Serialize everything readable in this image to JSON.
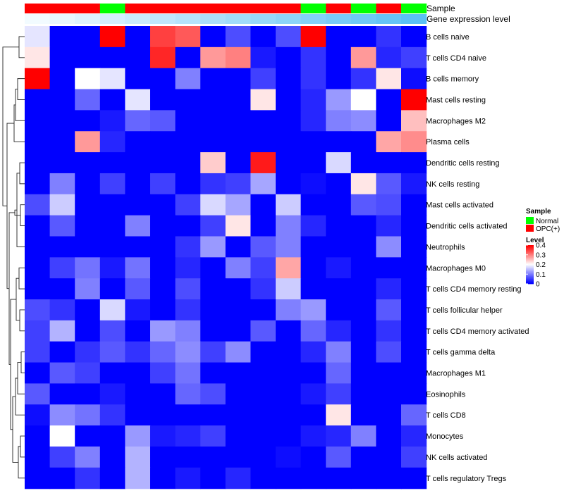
{
  "chart_data": {
    "type": "heatmap",
    "title": "",
    "annotations": {
      "sample_label": "Sample",
      "gene_label": "Gene expression level",
      "sample_values": [
        "OPC(+)",
        "OPC(+)",
        "OPC(+)",
        "Normal",
        "OPC(+)",
        "OPC(+)",
        "OPC(+)",
        "OPC(+)",
        "OPC(+)",
        "OPC(+)",
        "OPC(+)",
        "Normal",
        "OPC(+)",
        "Normal",
        "OPC(+)",
        "Normal"
      ],
      "gene_level_order": "increasing from left to right (white to light blue)"
    },
    "rows": [
      "B cells naive",
      "T cells CD4 naive",
      "B cells memory",
      "Mast cells resting",
      "Macrophages M2",
      "Plasma cells",
      "Dendritic cells resting",
      "NK cells resting",
      "Mast cells activated",
      "Dendritic cells activated",
      "Neutrophils",
      "Macrophages M0",
      "T cells CD4 memory resting",
      "T cells follicular helper",
      "T cells CD4 memory activated",
      "T cells gamma delta",
      "Macrophages M1",
      "Eosinophils",
      "T cells CD8",
      "Monocytes",
      "NK cells activated",
      "T cells regulatory  Tregs"
    ],
    "values": [
      [
        0.18,
        0,
        0,
        0.4,
        0,
        0.35,
        0.33,
        0,
        0.06,
        0,
        0.06,
        0.4,
        0,
        0,
        0.04,
        0
      ],
      [
        0.22,
        0,
        0,
        0,
        0,
        0.37,
        0,
        0.28,
        0.3,
        0.02,
        0,
        0.04,
        0,
        0.28,
        0.03,
        0.05
      ],
      [
        0.4,
        0,
        0.2,
        0.18,
        0,
        0,
        0.1,
        0,
        0,
        0.05,
        0,
        0.04,
        0,
        0.04,
        0.22,
        0.01
      ],
      [
        0,
        0,
        0.08,
        0,
        0.18,
        0,
        0,
        0,
        0,
        0.22,
        0,
        0.03,
        0.12,
        0.2,
        0,
        0.4
      ],
      [
        0,
        0,
        0,
        0.02,
        0.08,
        0.07,
        0,
        0,
        0,
        0,
        0,
        0.03,
        0.1,
        0.11,
        0,
        0.25
      ],
      [
        0,
        0,
        0.28,
        0.03,
        0,
        0,
        0,
        0,
        0,
        0,
        0,
        0,
        0,
        0,
        0.27,
        0.29
      ],
      [
        0,
        0,
        0,
        0,
        0,
        0,
        0,
        0.24,
        0,
        0.38,
        0,
        0,
        0.17,
        0,
        0,
        0
      ],
      [
        0,
        0.1,
        0,
        0.05,
        0,
        0.05,
        0,
        0.04,
        0.05,
        0.13,
        0,
        0.01,
        0,
        0.22,
        0.07,
        0.02
      ],
      [
        0.06,
        0.16,
        0,
        0,
        0,
        0,
        0.05,
        0.17,
        0.13,
        0,
        0.16,
        0,
        0,
        0.07,
        0.06,
        0
      ],
      [
        0,
        0.07,
        0,
        0,
        0.1,
        0,
        0,
        0.05,
        0.22,
        0,
        0.1,
        0.03,
        0,
        0,
        0.03,
        0
      ],
      [
        0,
        0,
        0,
        0,
        0,
        0,
        0.04,
        0.12,
        0,
        0.07,
        0.1,
        0,
        0,
        0,
        0.11,
        0
      ],
      [
        0,
        0.05,
        0.09,
        0.02,
        0.09,
        0,
        0.03,
        0,
        0.1,
        0.05,
        0.27,
        0,
        0.02,
        0,
        0,
        0
      ],
      [
        0,
        0,
        0.1,
        0,
        0.07,
        0,
        0.06,
        0,
        0,
        0.04,
        0.16,
        0,
        0,
        0,
        0.03,
        0
      ],
      [
        0.06,
        0.04,
        0,
        0.17,
        0.02,
        0,
        0.04,
        0,
        0,
        0,
        0.1,
        0.12,
        0,
        0,
        0.07,
        0
      ],
      [
        0.05,
        0.14,
        0,
        0.06,
        0,
        0.12,
        0.1,
        0,
        0,
        0.07,
        0,
        0.08,
        0.03,
        0,
        0.04,
        0
      ],
      [
        0.05,
        0,
        0.04,
        0.07,
        0.04,
        0.08,
        0.11,
        0.05,
        0.11,
        0,
        0,
        0.03,
        0.1,
        0,
        0.06,
        0
      ],
      [
        0,
        0.07,
        0.05,
        0,
        0,
        0.05,
        0.09,
        0,
        0,
        0,
        0,
        0,
        0.08,
        0,
        0,
        0
      ],
      [
        0.07,
        0,
        0,
        0.02,
        0,
        0,
        0.08,
        0.06,
        0,
        0,
        0,
        0.02,
        0.05,
        0,
        0,
        0
      ],
      [
        0.01,
        0.11,
        0.09,
        0.04,
        0,
        0,
        0,
        0,
        0,
        0,
        0,
        0,
        0.22,
        0,
        0,
        0.08
      ],
      [
        0,
        0.2,
        0,
        0,
        0.12,
        0.02,
        0.03,
        0.05,
        0,
        0,
        0,
        0.02,
        0.03,
        0.1,
        0,
        0.03
      ],
      [
        0,
        0.05,
        0.1,
        0,
        0.14,
        0,
        0,
        0,
        0,
        0,
        0.01,
        0,
        0.07,
        0,
        0,
        0.05
      ],
      [
        0,
        0,
        0.04,
        0,
        0.14,
        0,
        0.02,
        0,
        0.03,
        0,
        0,
        0,
        0,
        0,
        0,
        0
      ]
    ],
    "colorscale": {
      "min": 0,
      "max": 0.4,
      "low": "#0000ff",
      "mid": "#ffffff",
      "mid_value": 0.2,
      "high": "#ff0000"
    },
    "legend": {
      "sample_title": "Sample",
      "sample_entries": [
        {
          "label": "Normal",
          "color": "#00ff00"
        },
        {
          "label": "OPC(+)",
          "color": "#ff0000"
        }
      ],
      "level_title": "Level",
      "level_ticks": [
        "0.4",
        "0.3",
        "0.2",
        "0.1",
        "0"
      ],
      "level_tick_values": [
        0.4,
        0.3,
        0.2,
        0.1,
        0
      ]
    },
    "dendrogram": "row clustering tree on the left",
    "colors": {
      "normal": "#00ff00",
      "opc": "#ff0000",
      "gene_low": "#f2fbff",
      "gene_high": "#5bc0f5"
    }
  }
}
